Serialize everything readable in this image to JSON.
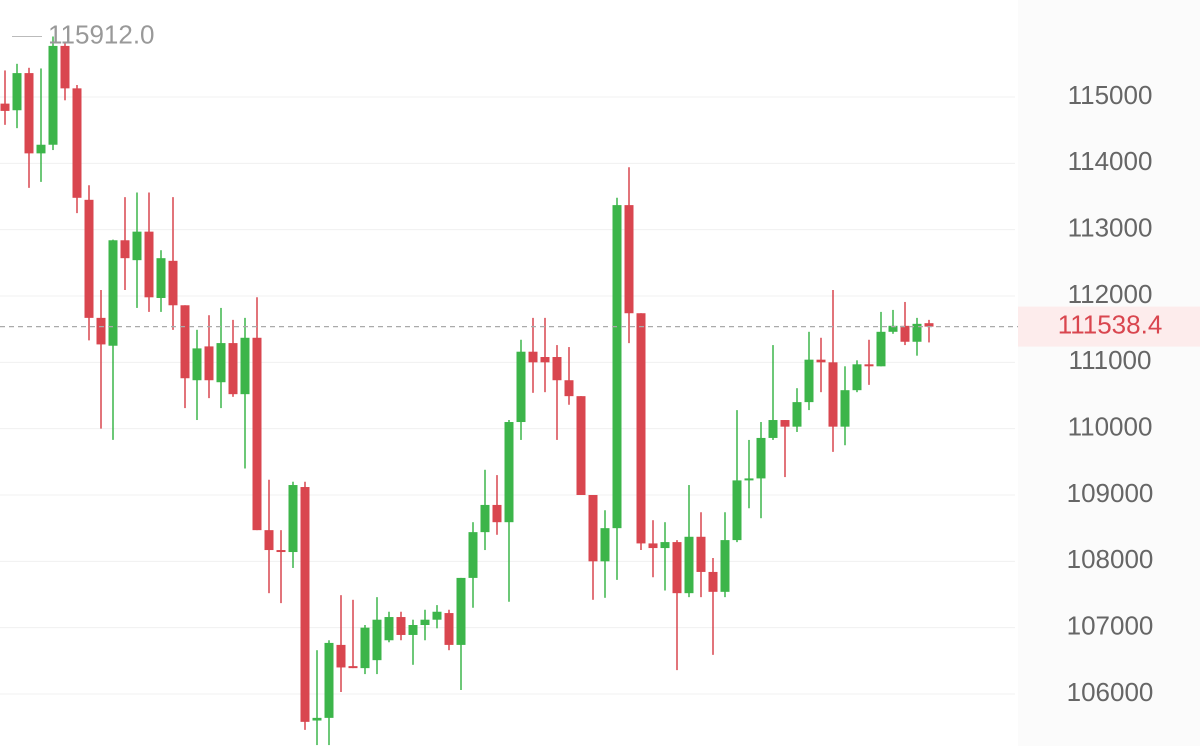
{
  "chart_data": {
    "type": "candlestick",
    "ylim": [
      105216,
      116462
    ],
    "yticks": [
      106000,
      107000,
      108000,
      109000,
      110000,
      111000,
      112000,
      113000,
      114000,
      115000
    ],
    "grid": true,
    "up_color": "#3cb54a",
    "down_color": "#d9464f",
    "max_label": {
      "value": 115912,
      "label": "115912.0"
    },
    "current_price": 111538.4,
    "open": [
      114900,
      114800,
      115360,
      114150,
      114280,
      115770,
      115130,
      113450,
      111670,
      111250,
      112840,
      112540,
      112970,
      111970,
      112530,
      111860,
      110730,
      111240,
      110700,
      111290,
      110520,
      111370,
      108470,
      108170,
      108140,
      109120,
      105600,
      105640,
      106740,
      106420,
      106390,
      106510,
      106810,
      107160,
      106890,
      107040,
      107120,
      107220,
      106740,
      107750,
      108440,
      108850,
      108590,
      110100,
      111160,
      111080,
      111080,
      110730,
      110490,
      109000,
      108000,
      108500,
      113370,
      111740,
      108270,
      108200,
      108290,
      107520,
      108370,
      107840,
      107540,
      108320,
      109220,
      109250,
      109860,
      110130,
      110030,
      110400,
      111040,
      111000,
      110030,
      110580,
      110970,
      110940,
      111460,
      111550,
      111310,
      111590
    ],
    "high": [
      115400,
      115500,
      115440,
      115430,
      115912,
      115810,
      115180,
      113670,
      112090,
      112850,
      113490,
      113560,
      113560,
      112690,
      113490,
      111860,
      111490,
      111710,
      111820,
      111640,
      111670,
      111980,
      109230,
      108470,
      109200,
      109200,
      106660,
      106810,
      107490,
      107420,
      107040,
      107460,
      107240,
      107240,
      107120,
      107270,
      107340,
      107270,
      107750,
      108590,
      109380,
      109300,
      110130,
      111340,
      111670,
      111670,
      111260,
      111230,
      110490,
      109000,
      108770,
      113480,
      113940,
      111740,
      108620,
      108590,
      108320,
      109150,
      108740,
      108050,
      108740,
      110280,
      109830,
      110100,
      111260,
      110130,
      110610,
      111460,
      111370,
      112090,
      110940,
      111030,
      111340,
      111760,
      111790,
      111910,
      111670,
      111640
    ],
    "low": [
      114580,
      114530,
      113630,
      113720,
      114200,
      114950,
      113250,
      111330,
      110000,
      109830,
      112090,
      111820,
      111760,
      111760,
      111490,
      110310,
      110130,
      110460,
      110310,
      110480,
      109400,
      108470,
      107520,
      107370,
      107900,
      105460,
      105230,
      105230,
      106030,
      106390,
      106300,
      106300,
      106780,
      106810,
      106440,
      106810,
      106990,
      106660,
      106060,
      107300,
      108170,
      108400,
      107390,
      109830,
      110540,
      110550,
      109830,
      110360,
      109000,
      107420,
      107450,
      107720,
      111290,
      108170,
      107760,
      107560,
      106360,
      107460,
      107460,
      106590,
      107460,
      108290,
      108800,
      108650,
      109830,
      109270,
      109950,
      110280,
      110550,
      109650,
      109750,
      110550,
      110660,
      110940,
      111430,
      111260,
      111100,
      111300
    ],
    "close": [
      114790,
      115360,
      114150,
      114280,
      115770,
      115130,
      113480,
      111670,
      111270,
      112840,
      112570,
      112970,
      111980,
      112570,
      111860,
      110760,
      111210,
      110730,
      111290,
      110520,
      111370,
      108470,
      108170,
      108140,
      109150,
      105580,
      105640,
      106770,
      106400,
      106390,
      107000,
      107120,
      107160,
      106890,
      107040,
      107120,
      107240,
      106740,
      107750,
      108440,
      108850,
      108590,
      110100,
      111160,
      111000,
      111000,
      110730,
      110490,
      109000,
      108000,
      108500,
      113370,
      111740,
      108270,
      108200,
      108290,
      107520,
      108370,
      107840,
      107540,
      108320,
      109220,
      109250,
      109860,
      110130,
      110030,
      110400,
      111040,
      111000,
      110030,
      110580,
      110970,
      110940,
      111460,
      111550,
      111310,
      111580,
      111538.4
    ]
  }
}
